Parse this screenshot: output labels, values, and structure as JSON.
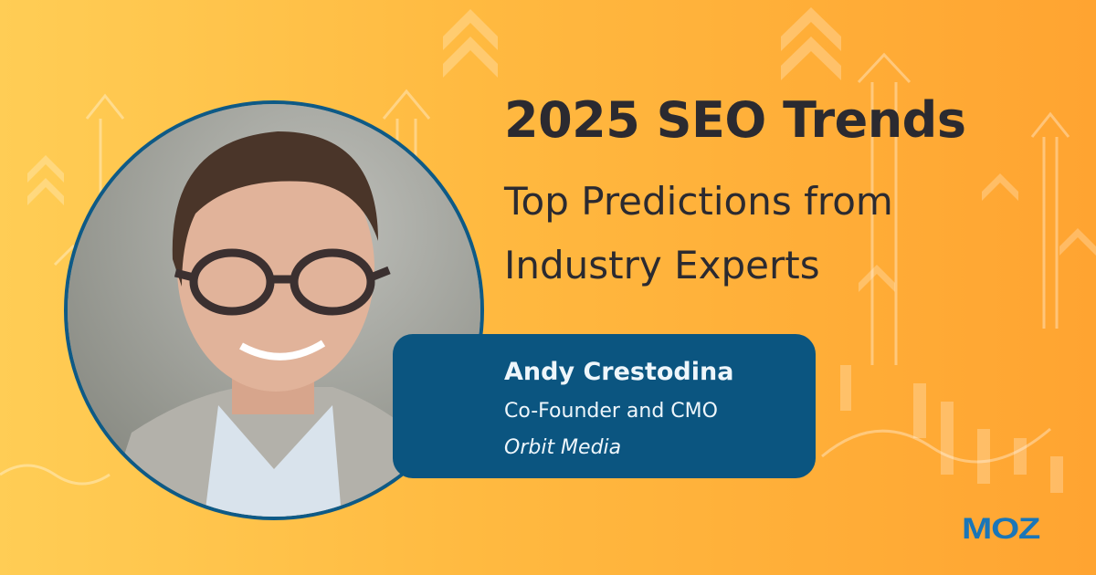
{
  "headline": {
    "title": "2025 SEO Trends",
    "subtitle_line1": "Top Predictions from",
    "subtitle_line2": "Industry Experts"
  },
  "speaker": {
    "name": "Andy Crestodina",
    "role": "Co-Founder and CMO",
    "organization": "Orbit Media"
  },
  "brand": {
    "logo_text": "MOZ",
    "logo_color": "#1a76b8"
  },
  "colors": {
    "card": "#0b5580",
    "ring": "#0e5a86",
    "text": "#2b2a30"
  }
}
